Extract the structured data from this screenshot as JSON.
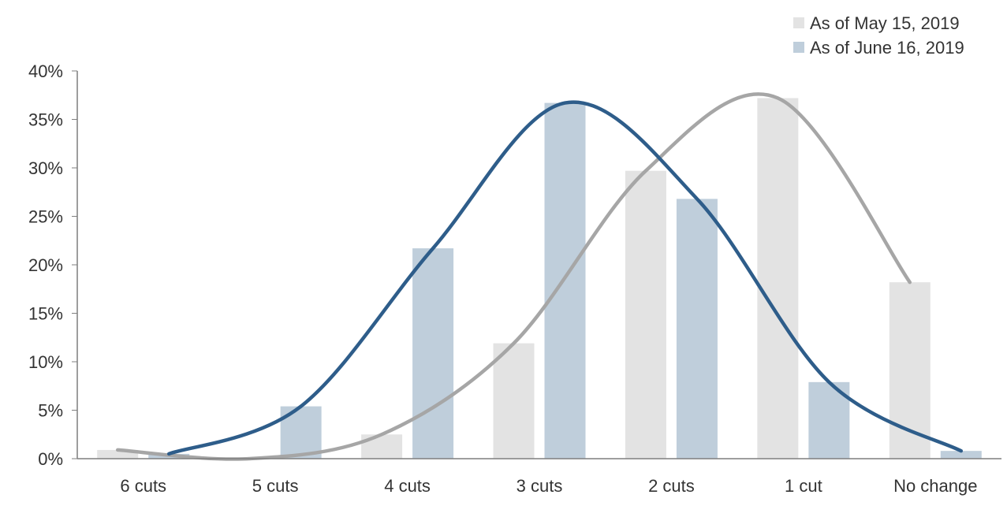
{
  "chart_data": {
    "type": "bar",
    "categories": [
      "6 cuts",
      "5 cuts",
      "4 cuts",
      "3 cuts",
      "2 cuts",
      "1 cut",
      "No change"
    ],
    "series": [
      {
        "name": "As of May 15, 2019",
        "values": [
          0.9,
          0.0,
          2.5,
          11.9,
          29.7,
          37.2,
          18.2
        ],
        "color": "#e3e3e3",
        "curve_color": "#a6a6a6"
      },
      {
        "name": "As of June 16, 2019",
        "values": [
          0.5,
          5.4,
          21.7,
          36.7,
          26.8,
          7.9,
          0.8
        ],
        "color": "#bfcedb",
        "curve_color": "#2e5d8a"
      }
    ],
    "y_ticks": [
      "0%",
      "5%",
      "10%",
      "15%",
      "20%",
      "25%",
      "30%",
      "35%",
      "40%"
    ],
    "ylim": [
      0,
      40
    ],
    "legend_position": "top-right",
    "grid": false,
    "smoothed_curves": true
  }
}
